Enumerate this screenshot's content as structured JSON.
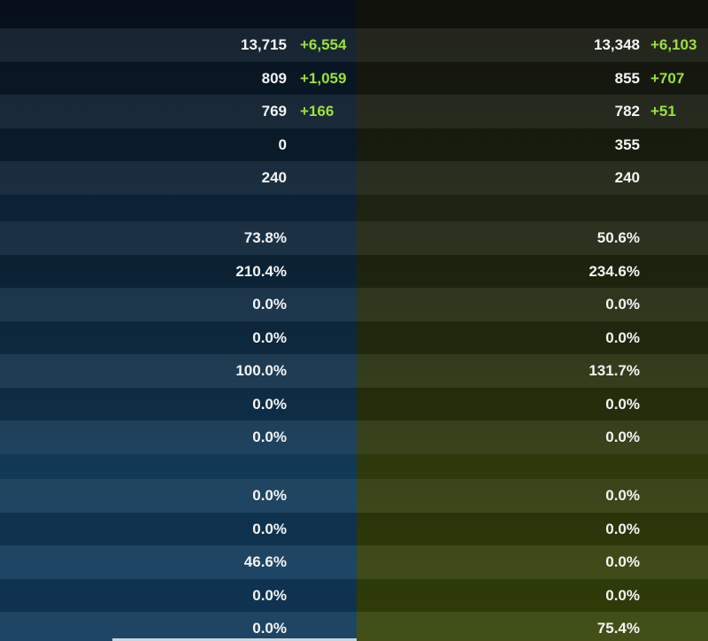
{
  "left": {
    "groups": [
      [
        {
          "value": "13,715",
          "bonus": "+6,554"
        },
        {
          "value": "809",
          "bonus": "+1,059"
        },
        {
          "value": "769",
          "bonus": "+166"
        },
        {
          "value": "0"
        },
        {
          "value": "240"
        }
      ],
      [
        {
          "value": "73.8%"
        },
        {
          "value": "210.4%"
        },
        {
          "value": "0.0%"
        },
        {
          "value": "0.0%"
        },
        {
          "value": "100.0%"
        },
        {
          "value": "0.0%"
        },
        {
          "value": "0.0%"
        }
      ],
      [
        {
          "value": "0.0%"
        },
        {
          "value": "0.0%"
        },
        {
          "value": "46.6%"
        },
        {
          "value": "0.0%"
        },
        {
          "value": "0.0%"
        }
      ]
    ]
  },
  "right": {
    "groups": [
      [
        {
          "value": "13,348",
          "bonus": "+6,103"
        },
        {
          "value": "855",
          "bonus": "+707"
        },
        {
          "value": "782",
          "bonus": "+51"
        },
        {
          "value": "355"
        },
        {
          "value": "240"
        }
      ],
      [
        {
          "value": "50.6%"
        },
        {
          "value": "234.6%"
        },
        {
          "value": "0.0%"
        },
        {
          "value": "0.0%"
        },
        {
          "value": "131.7%"
        },
        {
          "value": "0.0%"
        },
        {
          "value": "0.0%"
        }
      ],
      [
        {
          "value": "0.0%"
        },
        {
          "value": "0.0%"
        },
        {
          "value": "0.0%"
        },
        {
          "value": "0.0%"
        },
        {
          "value": "75.4%"
        }
      ]
    ]
  }
}
